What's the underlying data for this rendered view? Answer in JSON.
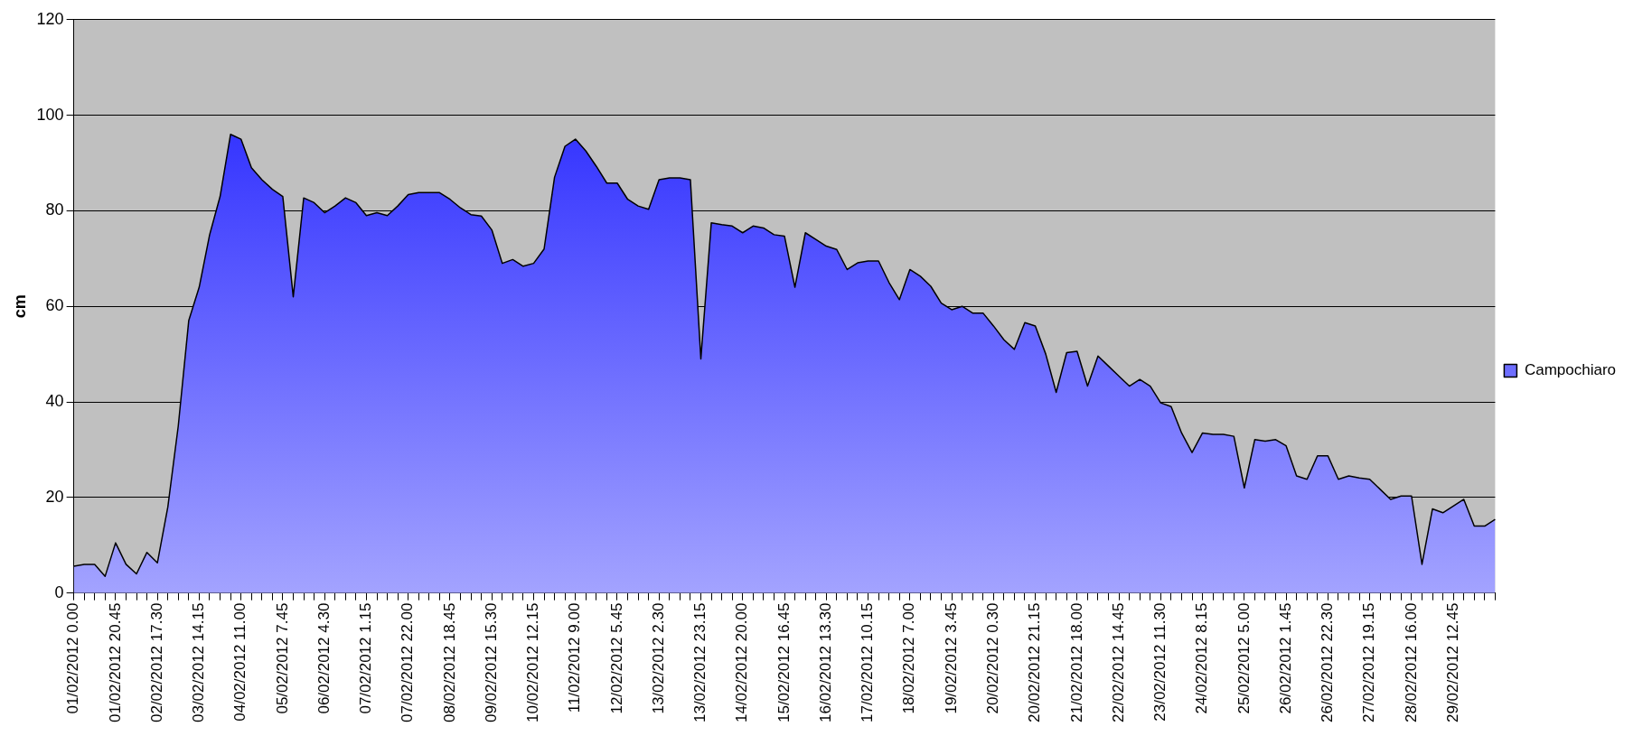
{
  "chart_data": {
    "type": "area",
    "ylabel": "cm",
    "ylim": [
      0,
      120
    ],
    "yticks": [
      0,
      20,
      40,
      60,
      80,
      100,
      120
    ],
    "grid": "y",
    "legend": "right",
    "categories": [
      "01/02/2012 0.00",
      null,
      null,
      null,
      "01/02/2012 20.45",
      null,
      null,
      null,
      "02/02/2012 17.30",
      null,
      null,
      null,
      "03/02/2012 14.15",
      null,
      null,
      null,
      "04/02/2012 11.00",
      null,
      null,
      null,
      "05/02/2012 7.45",
      null,
      null,
      null,
      "06/02/2012 4.30",
      null,
      null,
      null,
      "07/02/2012 1.15",
      null,
      null,
      null,
      "07/02/2012 22.00",
      null,
      null,
      null,
      "08/02/2012 18.45",
      null,
      null,
      null,
      "09/02/2012 15.30",
      null,
      null,
      null,
      "10/02/2012 12.15",
      null,
      null,
      null,
      "11/02/2012 9.00",
      null,
      null,
      null,
      "12/02/2012 5.45",
      null,
      null,
      null,
      "13/02/2012 2.30",
      null,
      null,
      null,
      "13/02/2012 23.15",
      null,
      null,
      null,
      "14/02/2012 20.00",
      null,
      null,
      null,
      "15/02/2012 16.45",
      null,
      null,
      null,
      "16/02/2012 13.30",
      null,
      null,
      null,
      "17/02/2012 10.15",
      null,
      null,
      null,
      "18/02/2012 7.00",
      null,
      null,
      null,
      "19/02/2012 3.45",
      null,
      null,
      null,
      "20/02/2012 0.30",
      null,
      null,
      null,
      "20/02/2012 21.15",
      null,
      null,
      null,
      "21/02/2012 18.00",
      null,
      null,
      null,
      "22/02/2012 14.45",
      null,
      null,
      null,
      "23/02/2012 11.30",
      null,
      null,
      null,
      "24/02/2012 8.15",
      null,
      null,
      null,
      "25/02/2012 5.00",
      null,
      null,
      null,
      "26/02/2012 1.45",
      null,
      null,
      null,
      "26/02/2012 22.30",
      null,
      null,
      null,
      "27/02/2012 19.15",
      null,
      null,
      null,
      "28/02/2012 16.00",
      null,
      null,
      null,
      "29/02/2012 12.45",
      null,
      null,
      null,
      null
    ],
    "series": [
      {
        "name": "Campochiaro",
        "color": "#1a1aff",
        "values": [
          5.6,
          6,
          6,
          3.5,
          10.5,
          6,
          4,
          8.5,
          6.3,
          18,
          35,
          57,
          64,
          75,
          83,
          96,
          95,
          89,
          86.5,
          84.5,
          83,
          62,
          82.7,
          81.7,
          79.6,
          81,
          82.7,
          81.7,
          79,
          79.6,
          79,
          81,
          83.4,
          83.8,
          83.8,
          83.8,
          82.4,
          80.6,
          79.2,
          78.9,
          76,
          69,
          69.8,
          68.4,
          69,
          72,
          87,
          93.5,
          95,
          92.5,
          89.3,
          85.8,
          85.8,
          82.4,
          81,
          80.3,
          86.5,
          86.9,
          86.9,
          86.5,
          49,
          77.5,
          77.1,
          76.8,
          75.4,
          76.8,
          76.4,
          75,
          74.7,
          64,
          75.4,
          74,
          72.6,
          71.9,
          67.7,
          69.1,
          69.5,
          69.5,
          65,
          61.4,
          67.7,
          66.3,
          64.2,
          60.7,
          59.3,
          60,
          58.6,
          58.6,
          55.9,
          53,
          51,
          56.6,
          55.9,
          50,
          42,
          50.3,
          50.6,
          43.3,
          49.6,
          47.5,
          45.4,
          43.3,
          44.7,
          43.3,
          39.8,
          39,
          33.5,
          29.4,
          33.5,
          33.2,
          33.2,
          32.8,
          22,
          32.1,
          31.8,
          32.1,
          30.8,
          24.5,
          23.8,
          28.7,
          28.7,
          23.8,
          24.5,
          24.1,
          23.8,
          21.7,
          19.6,
          20.3,
          20.3,
          6,
          17.6,
          16.8,
          18.2,
          19.6,
          14,
          14,
          15.4
        ]
      }
    ]
  }
}
